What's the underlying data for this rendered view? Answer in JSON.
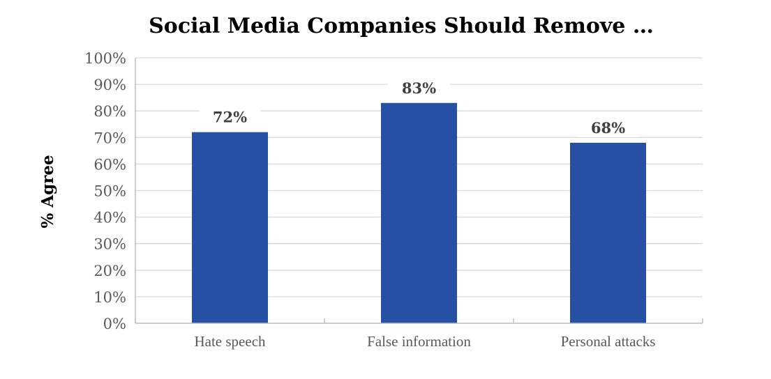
{
  "chart_data": {
    "type": "bar",
    "title": "Social Media Companies Should Remove …",
    "xlabel": "",
    "ylabel": "% Agree",
    "categories": [
      "Hate speech",
      "False information",
      "Personal attacks"
    ],
    "values": [
      72,
      83,
      68
    ],
    "value_labels": [
      "72%",
      "83%",
      "68%"
    ],
    "ylim": [
      0,
      100
    ],
    "yticks": [
      0,
      10,
      20,
      30,
      40,
      50,
      60,
      70,
      80,
      90,
      100
    ],
    "ytick_labels": [
      "0%",
      "10%",
      "20%",
      "30%",
      "40%",
      "50%",
      "60%",
      "70%",
      "80%",
      "90%",
      "100%"
    ],
    "grid": true,
    "legend": "none",
    "bar_color": "#2550a4",
    "grid_color": "#d9d9d9"
  }
}
